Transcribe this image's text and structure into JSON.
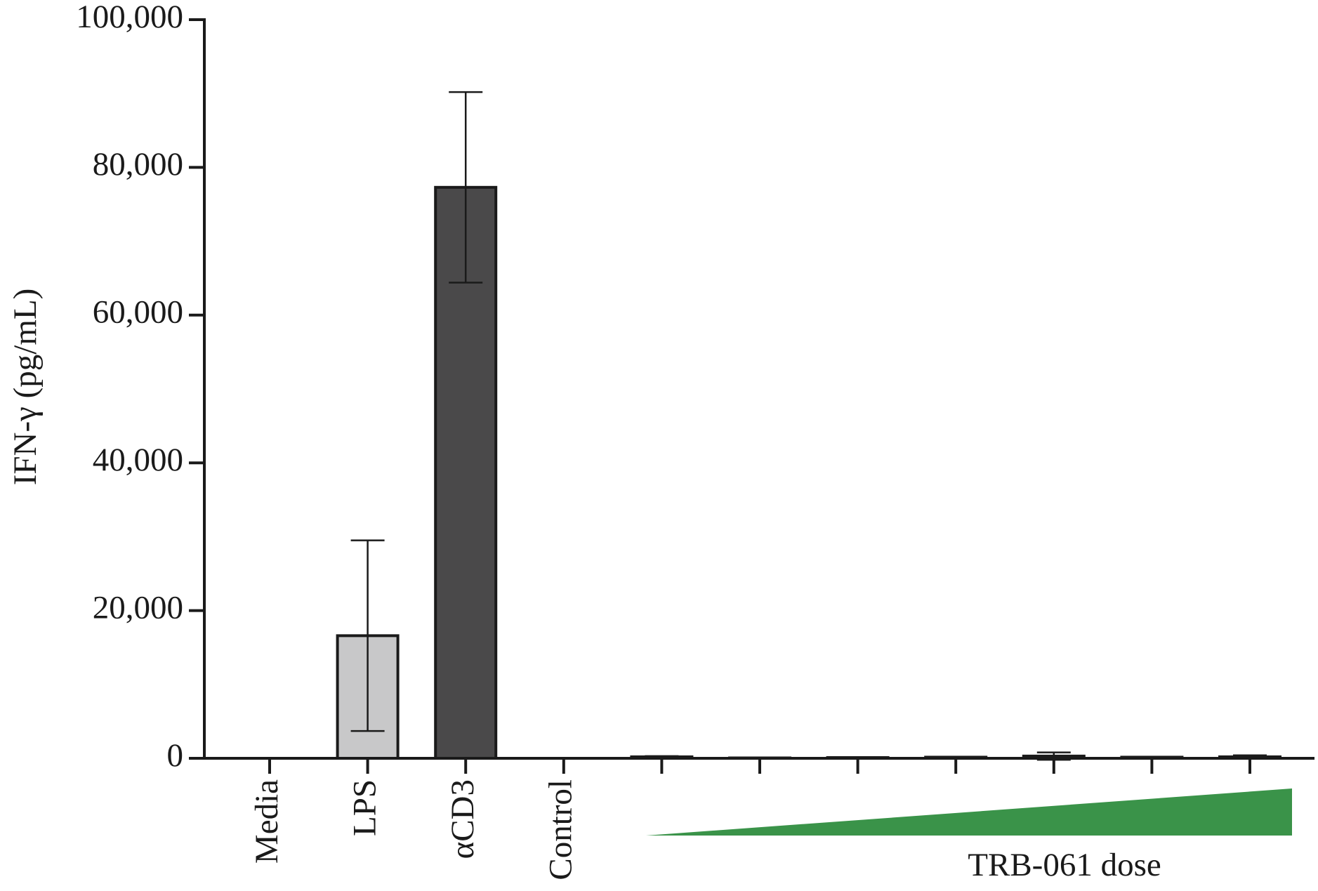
{
  "chart_data": {
    "type": "bar",
    "y_label": "IFN-γ (pg/mL)",
    "annotation": "TRB-061 dose",
    "categories": [
      "Media",
      "LPS",
      "αCD3",
      "Control",
      null,
      null,
      null,
      null,
      null,
      null,
      null
    ],
    "values": [
      0,
      16600,
      77300,
      0,
      200,
      50,
      100,
      150,
      300,
      150,
      200
    ],
    "errors": [
      0,
      12900,
      12900,
      0,
      100,
      50,
      50,
      50,
      500,
      50,
      200
    ],
    "colors": [
      "#ffffff",
      "#c8c8c9",
      "#4a494a",
      "#ffffff",
      "#ffffff",
      "#ffffff",
      "#ffffff",
      "#ffffff",
      "#ffffff",
      "#ffffff",
      "#ffffff"
    ],
    "ylim": [
      0,
      100000
    ],
    "yticks": [
      0,
      {
        "value": 20000,
        "label": "20,000"
      },
      {
        "value": 40000,
        "label": "40,000"
      },
      {
        "value": 60000,
        "label": "60,000"
      },
      {
        "value": 80000,
        "label": "80,000"
      },
      {
        "value": 100000,
        "label": "100,000"
      }
    ],
    "grid": false
  }
}
